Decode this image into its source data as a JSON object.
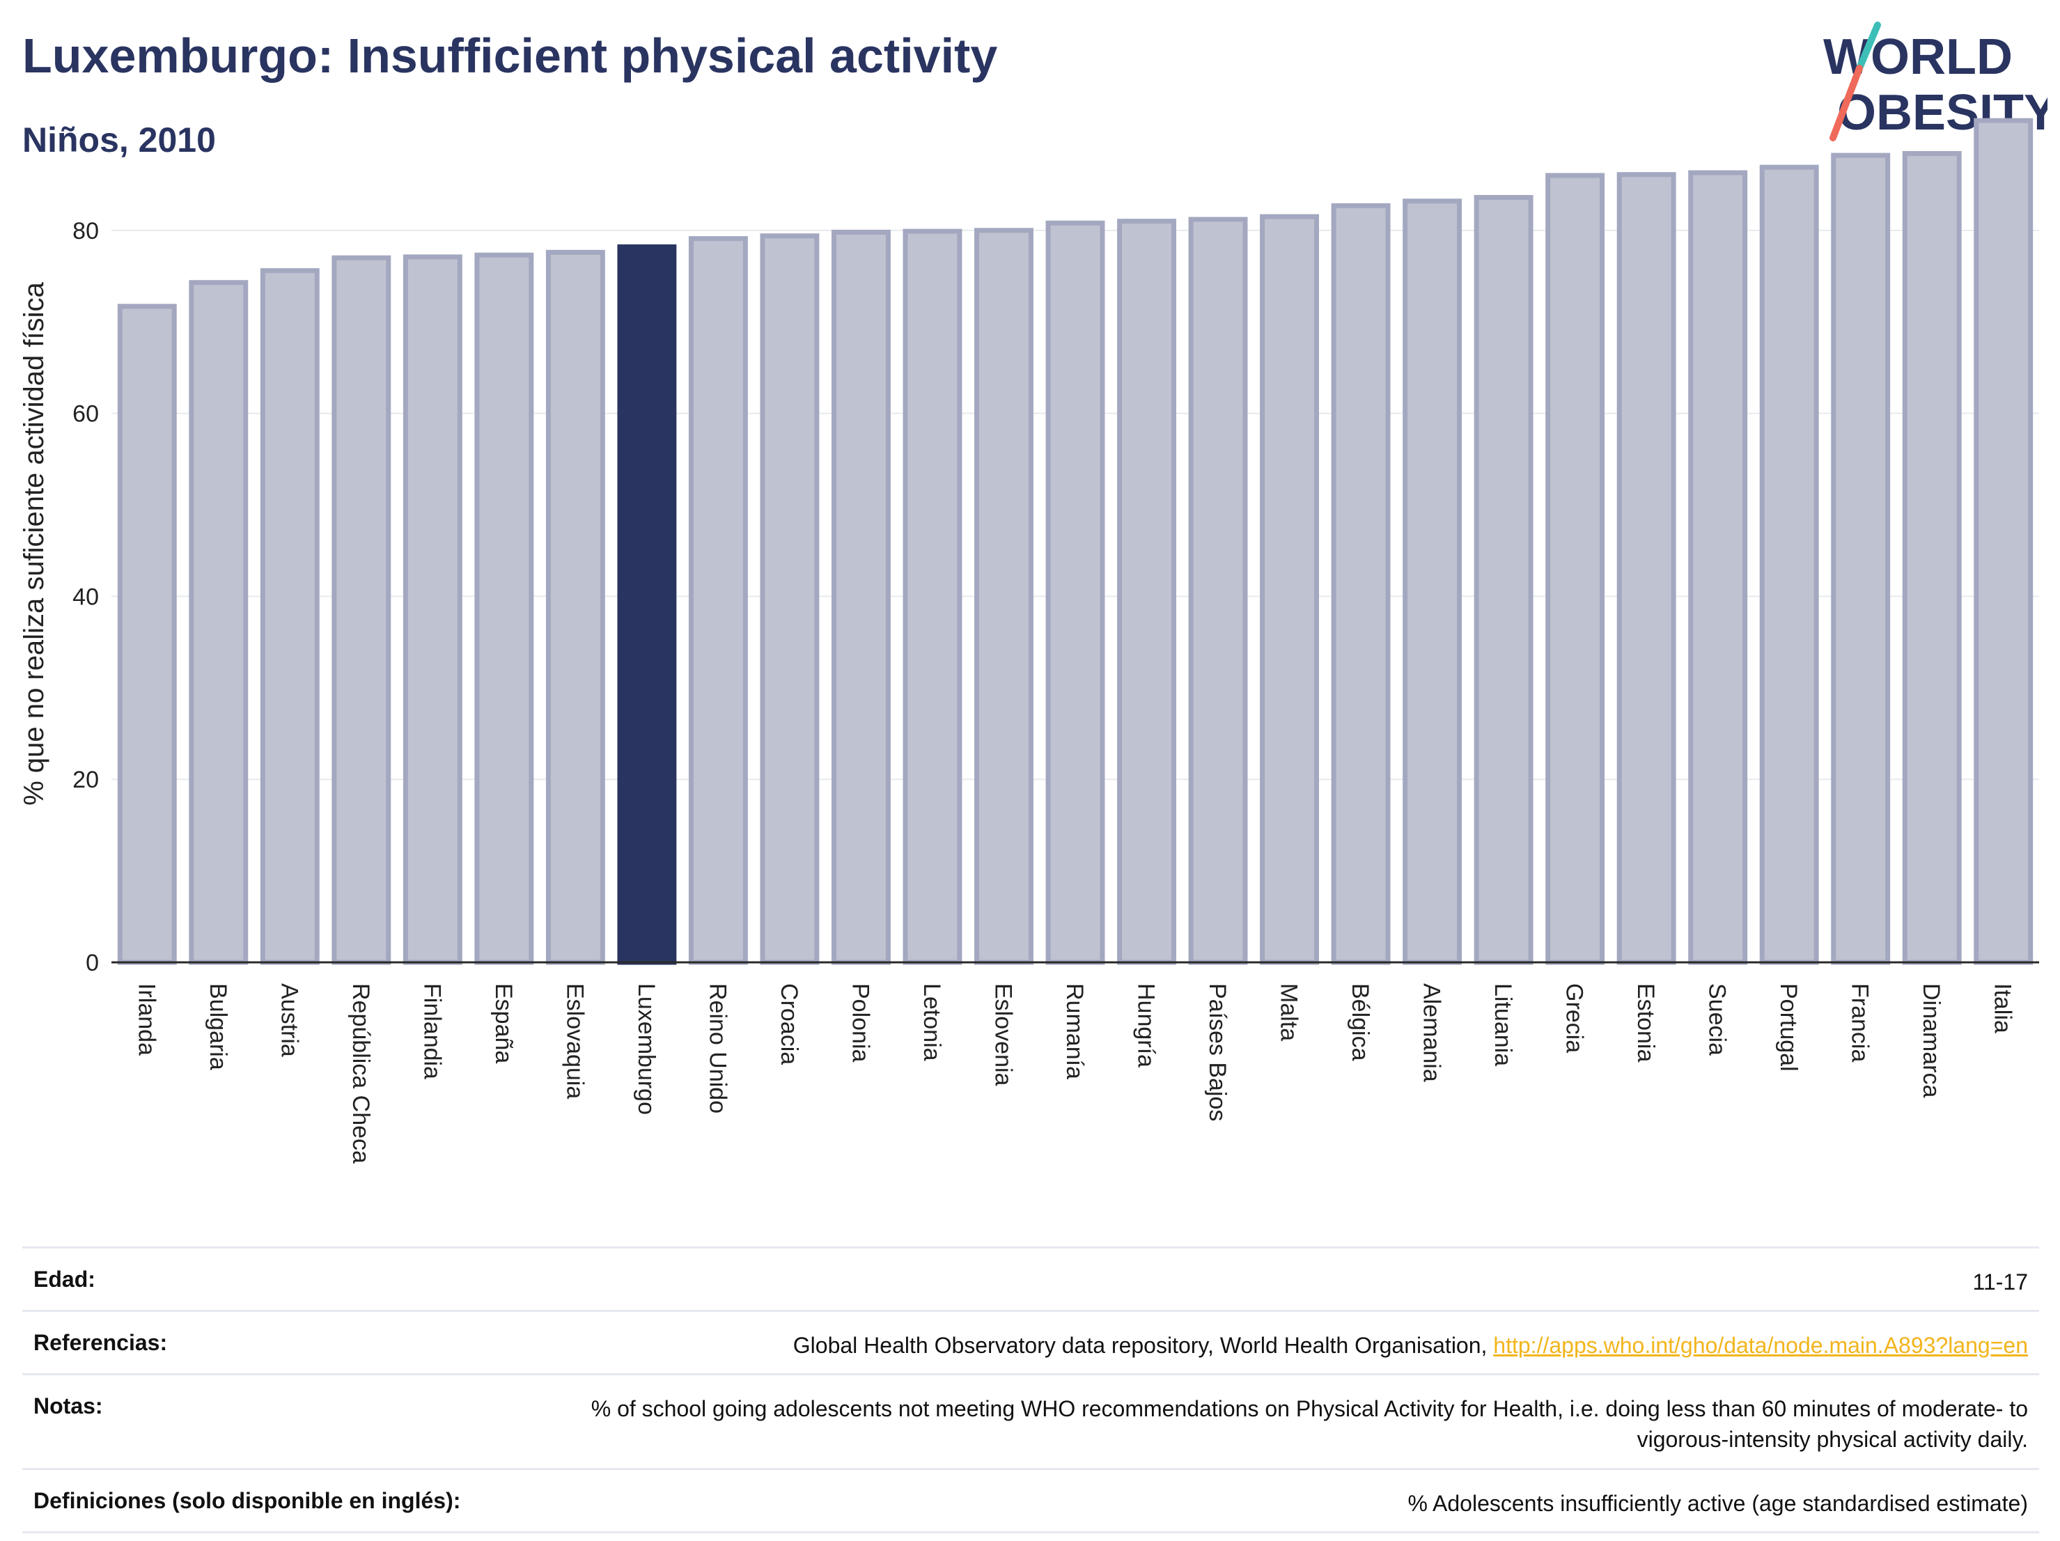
{
  "header": {
    "title": "Luxemburgo: Insufficient physical activity",
    "subtitle": "Niños, 2010"
  },
  "logo": {
    "line1": "WORLD",
    "line2": "OBESITY",
    "colors": {
      "text": "#2a3461",
      "slash_teal": "#3dbfb8",
      "slash_coral": "#ef6a5a"
    }
  },
  "chart_data": {
    "type": "bar",
    "title": "",
    "xlabel": "",
    "ylabel": "% que no realiza suficiente actividad física",
    "ylim": [
      0,
      93
    ],
    "yticks": [
      0,
      20,
      40,
      60,
      80
    ],
    "grid": true,
    "highlight": "Luxemburgo",
    "colors": {
      "bar_fill": "#bfc2d0",
      "bar_stroke": "#a3a8c0",
      "highlight_fill": "#2a3461",
      "grid": "#e9eaee",
      "axis": "#2a2a2a"
    },
    "categories": [
      "Irlanda",
      "Bulgaria",
      "Austria",
      "República Checa",
      "Finlandia",
      "España",
      "Eslovaquia",
      "Luxemburgo",
      "Reino Unido",
      "Croacia",
      "Polonia",
      "Letonia",
      "Eslovenia",
      "Rumanía",
      "Hungría",
      "Países Bajos",
      "Malta",
      "Bélgica",
      "Alemania",
      "Lituania",
      "Grecia",
      "Estonia",
      "Suecia",
      "Portugal",
      "Francia",
      "Dinamarca",
      "Italia"
    ],
    "values": [
      71.7,
      74.3,
      75.6,
      77.0,
      77.1,
      77.3,
      77.6,
      78.2,
      79.1,
      79.4,
      79.8,
      79.9,
      80.0,
      80.8,
      81.0,
      81.2,
      81.5,
      82.7,
      83.2,
      83.6,
      86.0,
      86.1,
      86.3,
      86.9,
      88.2,
      88.4,
      92.0
    ]
  },
  "info": {
    "rows": [
      {
        "key": "Edad:",
        "value": "11-17"
      },
      {
        "key": "Referencias:",
        "value": "Global Health Observatory data repository, World Health Organisation, ",
        "link": "http://apps.who.int/gho/data/node.main.A893?lang=en"
      },
      {
        "key": "Notas:",
        "value": "% of school going adolescents not meeting WHO recommendations on Physical Activity for Health, i.e. doing less than 60 minutes of moderate- to vigorous-intensity physical activity daily."
      },
      {
        "key": "Definiciones (solo disponible en inglés):",
        "value": "% Adolescents insufficiently active (age standardised estimate)"
      }
    ]
  }
}
